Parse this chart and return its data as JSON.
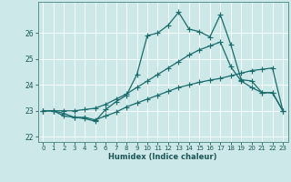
{
  "xlabel": "Humidex (Indice chaleur)",
  "bg_color": "#cce8e8",
  "grid_color": "#ffffff",
  "line_color": "#1a6b6b",
  "xlim": [
    -0.5,
    23.5
  ],
  "ylim": [
    21.8,
    27.2
  ],
  "xticks": [
    0,
    1,
    2,
    3,
    4,
    5,
    6,
    7,
    8,
    9,
    10,
    11,
    12,
    13,
    14,
    15,
    16,
    17,
    18,
    19,
    20,
    21,
    22,
    23
  ],
  "yticks": [
    22,
    23,
    24,
    25,
    26
  ],
  "line1_x": [
    0,
    1,
    2,
    3,
    4,
    5,
    6,
    7,
    8,
    9,
    10,
    11,
    12,
    13,
    14,
    15,
    16,
    17,
    18,
    19,
    20,
    21,
    22,
    23
  ],
  "line1_y": [
    23.0,
    23.0,
    22.8,
    22.75,
    22.75,
    22.65,
    22.8,
    22.95,
    23.15,
    23.3,
    23.45,
    23.6,
    23.75,
    23.9,
    24.0,
    24.1,
    24.18,
    24.25,
    24.35,
    24.45,
    24.55,
    24.6,
    24.65,
    23.0
  ],
  "line2_x": [
    0,
    1,
    2,
    3,
    4,
    5,
    6,
    7,
    8,
    9,
    10,
    11,
    12,
    13,
    14,
    15,
    16,
    17,
    18,
    19,
    20,
    21,
    22,
    23
  ],
  "line2_y": [
    23.0,
    23.0,
    23.0,
    23.0,
    23.05,
    23.1,
    23.25,
    23.45,
    23.65,
    23.9,
    24.15,
    24.4,
    24.65,
    24.9,
    25.15,
    25.35,
    25.5,
    25.65,
    24.7,
    24.15,
    23.9,
    23.7,
    23.7,
    23.0
  ],
  "line3_x": [
    0,
    1,
    2,
    3,
    4,
    5,
    6,
    7,
    8,
    9,
    10,
    11,
    12,
    13,
    14,
    15,
    16,
    17,
    18,
    19,
    20,
    21,
    22,
    23
  ],
  "line3_y": [
    23.0,
    23.0,
    22.9,
    22.75,
    22.7,
    22.6,
    23.05,
    23.35,
    23.6,
    24.4,
    25.9,
    26.0,
    26.3,
    26.8,
    26.15,
    26.05,
    25.85,
    26.7,
    25.55,
    24.2,
    24.15,
    23.7,
    23.7,
    23.0
  ],
  "tick_fontsize": 5,
  "xlabel_fontsize": 6,
  "linewidth": 0.9,
  "markersize": 2.2
}
